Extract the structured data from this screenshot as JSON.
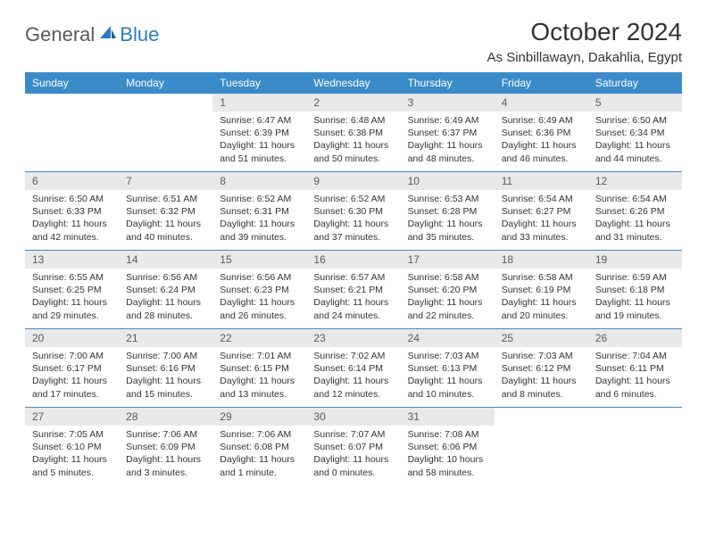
{
  "logo": {
    "word1": "General",
    "word2": "Blue"
  },
  "title": "October 2024",
  "location": "As Sinbillawayn, Dakahlia, Egypt",
  "colors": {
    "header_bg": "#3b8bc9",
    "header_fg": "#ffffff",
    "daynum_bg": "#e9e9e9",
    "daynum_fg": "#5a5a5a",
    "border": "#3b8bc9",
    "logo_gray": "#5a5a5a",
    "logo_blue": "#2b7bbf",
    "text": "#333333",
    "background": "#ffffff"
  },
  "fonts": {
    "title_size": 28,
    "location_size": 15,
    "dayhead_size": 12,
    "daynum_size": 12,
    "body_size": 10.5
  },
  "dayNames": [
    "Sunday",
    "Monday",
    "Tuesday",
    "Wednesday",
    "Thursday",
    "Friday",
    "Saturday"
  ],
  "weeks": [
    [
      null,
      null,
      {
        "n": "1",
        "sunrise": "Sunrise: 6:47 AM",
        "sunset": "Sunset: 6:39 PM",
        "daylight": "Daylight: 11 hours and 51 minutes."
      },
      {
        "n": "2",
        "sunrise": "Sunrise: 6:48 AM",
        "sunset": "Sunset: 6:38 PM",
        "daylight": "Daylight: 11 hours and 50 minutes."
      },
      {
        "n": "3",
        "sunrise": "Sunrise: 6:49 AM",
        "sunset": "Sunset: 6:37 PM",
        "daylight": "Daylight: 11 hours and 48 minutes."
      },
      {
        "n": "4",
        "sunrise": "Sunrise: 6:49 AM",
        "sunset": "Sunset: 6:36 PM",
        "daylight": "Daylight: 11 hours and 46 minutes."
      },
      {
        "n": "5",
        "sunrise": "Sunrise: 6:50 AM",
        "sunset": "Sunset: 6:34 PM",
        "daylight": "Daylight: 11 hours and 44 minutes."
      }
    ],
    [
      {
        "n": "6",
        "sunrise": "Sunrise: 6:50 AM",
        "sunset": "Sunset: 6:33 PM",
        "daylight": "Daylight: 11 hours and 42 minutes."
      },
      {
        "n": "7",
        "sunrise": "Sunrise: 6:51 AM",
        "sunset": "Sunset: 6:32 PM",
        "daylight": "Daylight: 11 hours and 40 minutes."
      },
      {
        "n": "8",
        "sunrise": "Sunrise: 6:52 AM",
        "sunset": "Sunset: 6:31 PM",
        "daylight": "Daylight: 11 hours and 39 minutes."
      },
      {
        "n": "9",
        "sunrise": "Sunrise: 6:52 AM",
        "sunset": "Sunset: 6:30 PM",
        "daylight": "Daylight: 11 hours and 37 minutes."
      },
      {
        "n": "10",
        "sunrise": "Sunrise: 6:53 AM",
        "sunset": "Sunset: 6:28 PM",
        "daylight": "Daylight: 11 hours and 35 minutes."
      },
      {
        "n": "11",
        "sunrise": "Sunrise: 6:54 AM",
        "sunset": "Sunset: 6:27 PM",
        "daylight": "Daylight: 11 hours and 33 minutes."
      },
      {
        "n": "12",
        "sunrise": "Sunrise: 6:54 AM",
        "sunset": "Sunset: 6:26 PM",
        "daylight": "Daylight: 11 hours and 31 minutes."
      }
    ],
    [
      {
        "n": "13",
        "sunrise": "Sunrise: 6:55 AM",
        "sunset": "Sunset: 6:25 PM",
        "daylight": "Daylight: 11 hours and 29 minutes."
      },
      {
        "n": "14",
        "sunrise": "Sunrise: 6:56 AM",
        "sunset": "Sunset: 6:24 PM",
        "daylight": "Daylight: 11 hours and 28 minutes."
      },
      {
        "n": "15",
        "sunrise": "Sunrise: 6:56 AM",
        "sunset": "Sunset: 6:23 PM",
        "daylight": "Daylight: 11 hours and 26 minutes."
      },
      {
        "n": "16",
        "sunrise": "Sunrise: 6:57 AM",
        "sunset": "Sunset: 6:21 PM",
        "daylight": "Daylight: 11 hours and 24 minutes."
      },
      {
        "n": "17",
        "sunrise": "Sunrise: 6:58 AM",
        "sunset": "Sunset: 6:20 PM",
        "daylight": "Daylight: 11 hours and 22 minutes."
      },
      {
        "n": "18",
        "sunrise": "Sunrise: 6:58 AM",
        "sunset": "Sunset: 6:19 PM",
        "daylight": "Daylight: 11 hours and 20 minutes."
      },
      {
        "n": "19",
        "sunrise": "Sunrise: 6:59 AM",
        "sunset": "Sunset: 6:18 PM",
        "daylight": "Daylight: 11 hours and 19 minutes."
      }
    ],
    [
      {
        "n": "20",
        "sunrise": "Sunrise: 7:00 AM",
        "sunset": "Sunset: 6:17 PM",
        "daylight": "Daylight: 11 hours and 17 minutes."
      },
      {
        "n": "21",
        "sunrise": "Sunrise: 7:00 AM",
        "sunset": "Sunset: 6:16 PM",
        "daylight": "Daylight: 11 hours and 15 minutes."
      },
      {
        "n": "22",
        "sunrise": "Sunrise: 7:01 AM",
        "sunset": "Sunset: 6:15 PM",
        "daylight": "Daylight: 11 hours and 13 minutes."
      },
      {
        "n": "23",
        "sunrise": "Sunrise: 7:02 AM",
        "sunset": "Sunset: 6:14 PM",
        "daylight": "Daylight: 11 hours and 12 minutes."
      },
      {
        "n": "24",
        "sunrise": "Sunrise: 7:03 AM",
        "sunset": "Sunset: 6:13 PM",
        "daylight": "Daylight: 11 hours and 10 minutes."
      },
      {
        "n": "25",
        "sunrise": "Sunrise: 7:03 AM",
        "sunset": "Sunset: 6:12 PM",
        "daylight": "Daylight: 11 hours and 8 minutes."
      },
      {
        "n": "26",
        "sunrise": "Sunrise: 7:04 AM",
        "sunset": "Sunset: 6:11 PM",
        "daylight": "Daylight: 11 hours and 6 minutes."
      }
    ],
    [
      {
        "n": "27",
        "sunrise": "Sunrise: 7:05 AM",
        "sunset": "Sunset: 6:10 PM",
        "daylight": "Daylight: 11 hours and 5 minutes."
      },
      {
        "n": "28",
        "sunrise": "Sunrise: 7:06 AM",
        "sunset": "Sunset: 6:09 PM",
        "daylight": "Daylight: 11 hours and 3 minutes."
      },
      {
        "n": "29",
        "sunrise": "Sunrise: 7:06 AM",
        "sunset": "Sunset: 6:08 PM",
        "daylight": "Daylight: 11 hours and 1 minute."
      },
      {
        "n": "30",
        "sunrise": "Sunrise: 7:07 AM",
        "sunset": "Sunset: 6:07 PM",
        "daylight": "Daylight: 11 hours and 0 minutes."
      },
      {
        "n": "31",
        "sunrise": "Sunrise: 7:08 AM",
        "sunset": "Sunset: 6:06 PM",
        "daylight": "Daylight: 10 hours and 58 minutes."
      },
      null,
      null
    ]
  ]
}
